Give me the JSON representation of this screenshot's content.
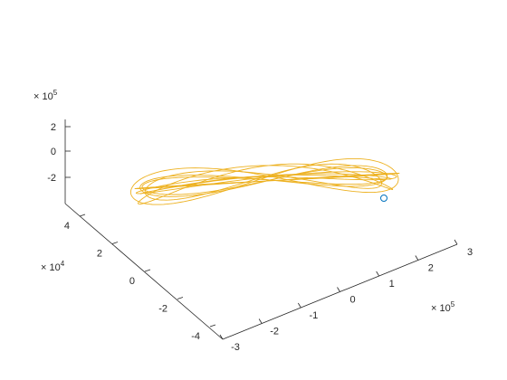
{
  "chart_data": {
    "type": "line",
    "subtype": "3d-trajectory",
    "title": "",
    "xlabel": "",
    "ylabel": "",
    "zlabel": "",
    "x_axis": {
      "ticks": [
        "-3",
        "-2",
        "-1",
        "0",
        "1",
        "2",
        "3"
      ],
      "tick_values": [
        -300000,
        -200000,
        -100000,
        0,
        100000,
        200000,
        300000
      ],
      "exponent_label": "× 10",
      "exponent_power": "5",
      "range": [
        -300000,
        300000
      ]
    },
    "y_axis": {
      "ticks": [
        "-4",
        "-2",
        "0",
        "2",
        "4"
      ],
      "tick_values": [
        -40000,
        -20000,
        0,
        20000,
        40000
      ],
      "exponent_label": "× 10",
      "exponent_power": "4",
      "range": [
        -50000,
        50000
      ]
    },
    "z_axis": {
      "ticks": [
        "-2",
        "0",
        "2"
      ],
      "tick_values": [
        -200000,
        0,
        200000
      ],
      "exponent_label": "× 10",
      "exponent_power": "5",
      "range": [
        -300000,
        250000
      ]
    },
    "grid": false,
    "series": [
      {
        "color": "#EDB120",
        "description": "multi-loop figure-eight trajectory",
        "loops": [
          {
            "ax": 280000,
            "ay": 30000,
            "az": 45000
          },
          {
            "ax": 275000,
            "ay": 34000,
            "az": 70000
          },
          {
            "ax": 265000,
            "ay": 24000,
            "az": 50000
          },
          {
            "ax": 258000,
            "ay": 40000,
            "az": 25000
          },
          {
            "ax": 270000,
            "ay": 20000,
            "az": 90000
          },
          {
            "ax": 250000,
            "ay": 36000,
            "az": 60000
          },
          {
            "ax": 262000,
            "ay": 28000,
            "az": 35000
          },
          {
            "ax": 284000,
            "ay": 18000,
            "az": 78000
          }
        ]
      }
    ],
    "marker": {
      "shape": "circle",
      "color": "#0072BD",
      "x": 150000,
      "y": -20000,
      "z": -80000
    }
  }
}
